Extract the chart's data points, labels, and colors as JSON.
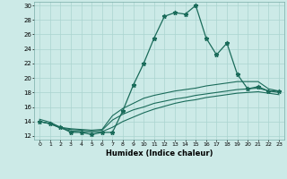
{
  "xlabel": "Humidex (Indice chaleur)",
  "bg_color": "#cceae7",
  "grid_color": "#aad4d0",
  "line_color": "#1a6b5a",
  "xlim": [
    -0.5,
    23.5
  ],
  "ylim": [
    11.5,
    30.5
  ],
  "xticks": [
    0,
    1,
    2,
    3,
    4,
    5,
    6,
    7,
    8,
    9,
    10,
    11,
    12,
    13,
    14,
    15,
    16,
    17,
    18,
    19,
    20,
    21,
    22,
    23
  ],
  "yticks": [
    12,
    14,
    16,
    18,
    20,
    22,
    24,
    26,
    28,
    30
  ],
  "line1_x": [
    0,
    1,
    2,
    3,
    4,
    5,
    6,
    7,
    8,
    9,
    10,
    11,
    12,
    13,
    14,
    15,
    16,
    17,
    18,
    19,
    20,
    21,
    22,
    23
  ],
  "line1_y": [
    14.0,
    13.7,
    13.2,
    12.5,
    12.5,
    12.2,
    12.5,
    12.5,
    15.5,
    19.0,
    22.0,
    25.5,
    28.5,
    29.0,
    28.8,
    30.0,
    25.5,
    23.2,
    24.8,
    20.5,
    18.5,
    18.8,
    18.2,
    18.2
  ],
  "line2_x": [
    0,
    1,
    2,
    3,
    4,
    5,
    6,
    7,
    8,
    9,
    10,
    11,
    12,
    13,
    14,
    15,
    16,
    17,
    18,
    19,
    20,
    21,
    22,
    23
  ],
  "line2_y": [
    14.3,
    13.9,
    13.2,
    13.0,
    12.9,
    12.8,
    12.9,
    14.8,
    15.8,
    16.5,
    17.2,
    17.6,
    17.9,
    18.2,
    18.4,
    18.6,
    18.9,
    19.1,
    19.3,
    19.5,
    19.5,
    19.5,
    18.5,
    18.2
  ],
  "line3_x": [
    0,
    1,
    2,
    3,
    4,
    5,
    6,
    7,
    8,
    9,
    10,
    11,
    12,
    13,
    14,
    15,
    16,
    17,
    18,
    19,
    20,
    21,
    22,
    23
  ],
  "line3_y": [
    14.0,
    13.7,
    13.1,
    12.9,
    12.8,
    12.7,
    12.8,
    14.2,
    15.0,
    15.6,
    16.0,
    16.5,
    16.8,
    17.1,
    17.3,
    17.6,
    17.8,
    18.0,
    18.2,
    18.4,
    18.5,
    18.6,
    18.2,
    18.0
  ],
  "line4_x": [
    0,
    1,
    2,
    3,
    4,
    5,
    6,
    7,
    8,
    9,
    10,
    11,
    12,
    13,
    14,
    15,
    16,
    17,
    18,
    19,
    20,
    21,
    22,
    23
  ],
  "line4_y": [
    14.0,
    13.7,
    13.1,
    12.7,
    12.6,
    12.5,
    12.6,
    13.2,
    14.0,
    14.6,
    15.2,
    15.7,
    16.1,
    16.5,
    16.8,
    17.0,
    17.3,
    17.5,
    17.7,
    17.9,
    18.0,
    18.1,
    17.9,
    17.7
  ]
}
